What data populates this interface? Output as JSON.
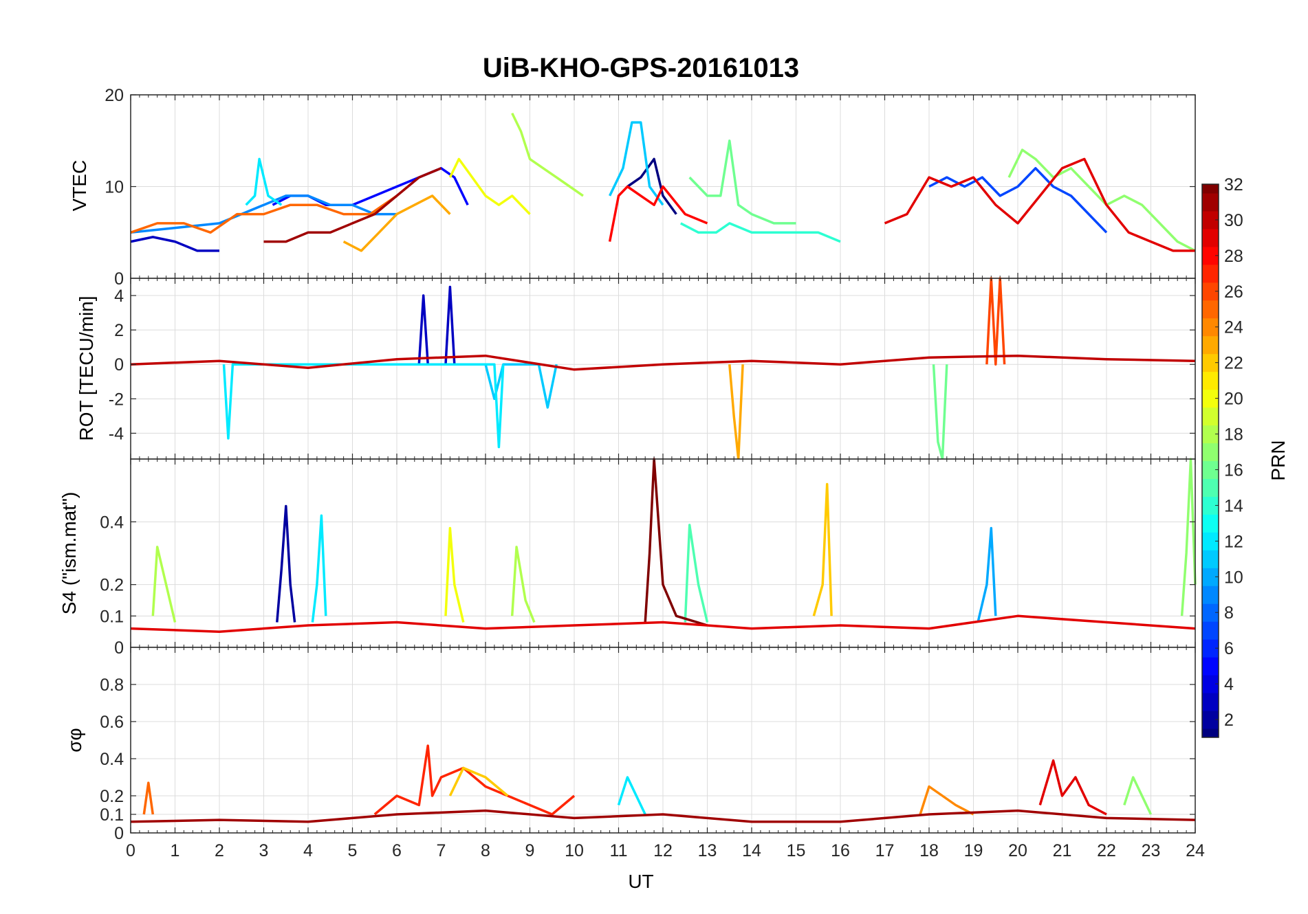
{
  "chart_data": {
    "type": "line",
    "title": "UiB-KHO-GPS-20161013",
    "xlabel": "UT",
    "xlim": [
      0,
      24
    ],
    "xticks": [
      0,
      1,
      2,
      3,
      4,
      5,
      6,
      7,
      8,
      9,
      10,
      11,
      12,
      13,
      14,
      15,
      16,
      17,
      18,
      19,
      20,
      21,
      22,
      23,
      24
    ],
    "grid": true,
    "colorbar": {
      "label": "PRN",
      "range": [
        1,
        32
      ],
      "ticks": [
        2,
        4,
        6,
        8,
        10,
        12,
        14,
        16,
        18,
        20,
        22,
        24,
        26,
        28,
        30,
        32
      ],
      "colormap": "jet"
    },
    "panels": [
      {
        "ylabel": "VTEC",
        "ylim": [
          0,
          20
        ],
        "yticks": [
          0,
          10,
          20
        ],
        "series": [
          {
            "prn": 1,
            "x": [
              11.2,
              11.5,
              11.8,
              12.0,
              12.3
            ],
            "y": [
              10,
              11,
              13,
              9,
              7
            ]
          },
          {
            "prn": 3,
            "x": [
              0.0,
              0.5,
              1.0,
              1.5,
              2.0
            ],
            "y": [
              4,
              4.5,
              4,
              3,
              3
            ]
          },
          {
            "prn": 5,
            "x": [
              3.2,
              3.6,
              4.0,
              4.4,
              5.0,
              5.5,
              6.0,
              6.5,
              7.0,
              7.3,
              7.6
            ],
            "y": [
              8,
              9,
              9,
              8,
              8,
              9,
              10,
              11,
              12,
              11,
              8
            ]
          },
          {
            "prn": 7,
            "x": [
              18.0,
              18.4,
              18.8,
              19.2,
              19.6,
              20.0,
              20.4,
              20.8,
              21.2,
              21.6,
              22.0
            ],
            "y": [
              10,
              11,
              10,
              11,
              9,
              10,
              12,
              10,
              9,
              7,
              5
            ]
          },
          {
            "prn": 9,
            "x": [
              0.0,
              1.0,
              2.0,
              3.0,
              3.5,
              4.0,
              4.5,
              5.0,
              5.5,
              6.0
            ],
            "y": [
              5,
              5.5,
              6,
              8,
              9,
              9,
              8,
              8,
              7,
              7
            ]
          },
          {
            "prn": 11,
            "x": [
              10.8,
              11.1,
              11.3,
              11.5,
              11.7,
              12.0
            ],
            "y": [
              9,
              12,
              17,
              17,
              10,
              8
            ]
          },
          {
            "prn": 12,
            "x": [
              2.6,
              2.8,
              2.9,
              3.1,
              3.4
            ],
            "y": [
              8,
              9,
              13,
              9,
              8
            ]
          },
          {
            "prn": 14,
            "x": [
              12.4,
              12.8,
              13.2,
              13.5,
              14.0,
              14.5,
              15.0,
              15.5,
              16.0
            ],
            "y": [
              6,
              5,
              5,
              6,
              5,
              5,
              5,
              5,
              4
            ]
          },
          {
            "prn": 16,
            "x": [
              12.6,
              13.0,
              13.3,
              13.5,
              13.7,
              14.0,
              14.5,
              15.0
            ],
            "y": [
              11,
              9,
              9,
              15,
              8,
              7,
              6,
              6
            ]
          },
          {
            "prn": 17,
            "x": [
              19.8,
              20.1,
              20.4,
              20.8,
              21.2,
              21.6,
              22.0,
              22.4,
              22.8,
              23.2,
              23.6,
              24.0
            ],
            "y": [
              11,
              14,
              13,
              11,
              12,
              10,
              8,
              9,
              8,
              6,
              4,
              3
            ]
          },
          {
            "prn": 18,
            "x": [
              8.6,
              8.8,
              9.0,
              9.3,
              9.6,
              9.9,
              10.2
            ],
            "y": [
              18,
              16,
              13,
              12,
              11,
              10,
              9
            ]
          },
          {
            "prn": 20,
            "x": [
              7.2,
              7.4,
              7.7,
              8.0,
              8.3,
              8.6,
              9.0
            ],
            "y": [
              11,
              13,
              11,
              9,
              8,
              9,
              7
            ]
          },
          {
            "prn": 23,
            "x": [
              4.8,
              5.2,
              5.6,
              6.0,
              6.4,
              6.8,
              7.2
            ],
            "y": [
              4,
              3,
              5,
              7,
              8,
              9,
              7
            ]
          },
          {
            "prn": 25,
            "x": [
              0.0,
              0.6,
              1.2,
              1.8,
              2.4,
              3.0,
              3.6,
              4.2,
              4.8,
              5.4,
              6.0
            ],
            "y": [
              5,
              6,
              6,
              5,
              7,
              7,
              8,
              8,
              7,
              7,
              9
            ]
          },
          {
            "prn": 28,
            "x": [
              10.8,
              11.0,
              11.2,
              11.5,
              11.8,
              12.0,
              12.5,
              13.0
            ],
            "y": [
              4,
              9,
              10,
              9,
              8,
              10,
              7,
              6
            ]
          },
          {
            "prn": 29,
            "x": [
              17.0,
              17.5,
              18.0,
              18.5,
              19.0,
              19.5,
              20.0,
              20.5,
              21.0,
              21.5,
              22.0,
              22.5,
              23.0,
              23.5,
              24.0
            ],
            "y": [
              6,
              7,
              11,
              10,
              11,
              8,
              6,
              9,
              12,
              13,
              8,
              5,
              4,
              3,
              3
            ]
          },
          {
            "prn": 31,
            "x": [
              3.0,
              3.5,
              4.0,
              4.5,
              5.0,
              5.5,
              6.0,
              6.5,
              7.0
            ],
            "y": [
              4,
              4,
              5,
              5,
              6,
              7,
              9,
              11,
              12
            ]
          }
        ]
      },
      {
        "ylabel": "ROT [TECU/min]",
        "ylim": [
          -5.5,
          5
        ],
        "yticks": [
          -4,
          -2,
          0,
          2,
          4
        ],
        "series": [
          {
            "prn": 3,
            "x": [
              6.5,
              6.6,
              6.7,
              7.1,
              7.2,
              7.3
            ],
            "y": [
              0,
              4,
              0,
              0,
              4.5,
              0
            ]
          },
          {
            "prn": 11,
            "x": [
              8.0,
              8.2,
              8.4,
              9.2,
              9.4,
              9.6
            ],
            "y": [
              0,
              -2,
              0,
              0,
              -2.5,
              0
            ]
          },
          {
            "prn": 12,
            "x": [
              2.1,
              2.2,
              2.3,
              8.2,
              8.3,
              8.4
            ],
            "y": [
              0,
              -4.3,
              0,
              0,
              -4.8,
              0
            ]
          },
          {
            "prn": 16,
            "x": [
              18.1,
              18.2,
              18.3,
              18.4
            ],
            "y": [
              0,
              -4.5,
              -5.5,
              0
            ]
          },
          {
            "prn": 23,
            "x": [
              13.5,
              13.6,
              13.7,
              13.8
            ],
            "y": [
              0,
              -3,
              -5.5,
              0
            ]
          },
          {
            "prn": 26,
            "x": [
              19.3,
              19.4,
              19.5,
              19.6,
              19.7
            ],
            "y": [
              0,
              5,
              0,
              5,
              0
            ]
          },
          {
            "prn": 30,
            "x": [
              0,
              2,
              4,
              6,
              8,
              10,
              12,
              14,
              16,
              18,
              20,
              22,
              24
            ],
            "y": [
              0,
              0.2,
              -0.2,
              0.3,
              0.5,
              -0.3,
              0,
              0.2,
              0,
              0.4,
              0.5,
              0.3,
              0.2
            ]
          }
        ]
      },
      {
        "ylabel": "S4 (\"ism.mat\")",
        "ylim": [
          0,
          0.6
        ],
        "yticks": [
          0,
          0.1,
          0.2,
          0.4
        ],
        "series": [
          {
            "prn": 2,
            "x": [
              3.3,
              3.4,
              3.5,
              3.6,
              3.7
            ],
            "y": [
              0.08,
              0.25,
              0.45,
              0.2,
              0.08
            ]
          },
          {
            "prn": 12,
            "x": [
              4.1,
              4.2,
              4.3,
              4.4
            ],
            "y": [
              0.08,
              0.2,
              0.42,
              0.1
            ]
          },
          {
            "prn": 15,
            "x": [
              12.5,
              12.6,
              12.8,
              13.0
            ],
            "y": [
              0.08,
              0.39,
              0.2,
              0.08
            ]
          },
          {
            "prn": 18,
            "x": [
              0.5,
              0.6,
              0.8,
              1.0
            ],
            "y": [
              0.1,
              0.32,
              0.2,
              0.08
            ]
          },
          {
            "prn": 18,
            "x": [
              8.6,
              8.7,
              8.9,
              9.1
            ],
            "y": [
              0.1,
              0.32,
              0.15,
              0.08
            ]
          },
          {
            "prn": 20,
            "x": [
              7.1,
              7.2,
              7.3,
              7.5
            ],
            "y": [
              0.1,
              0.38,
              0.2,
              0.08
            ]
          },
          {
            "prn": 22,
            "x": [
              15.4,
              15.6,
              15.7,
              15.8
            ],
            "y": [
              0.1,
              0.2,
              0.52,
              0.1
            ]
          },
          {
            "prn": 10,
            "x": [
              19.1,
              19.3,
              19.4,
              19.5
            ],
            "y": [
              0.08,
              0.2,
              0.38,
              0.1
            ]
          },
          {
            "prn": 32,
            "x": [
              11.6,
              11.7,
              11.8,
              12.0,
              12.3,
              13.0
            ],
            "y": [
              0.08,
              0.3,
              0.6,
              0.2,
              0.1,
              0.07
            ]
          },
          {
            "prn": 17,
            "x": [
              23.7,
              23.8,
              23.9,
              24.0
            ],
            "y": [
              0.1,
              0.3,
              0.6,
              0.2
            ]
          },
          {
            "prn": 29,
            "x": [
              0,
              2,
              4,
              6,
              8,
              10,
              12,
              14,
              16,
              18,
              20,
              22,
              24
            ],
            "y": [
              0.06,
              0.05,
              0.07,
              0.08,
              0.06,
              0.07,
              0.08,
              0.06,
              0.07,
              0.06,
              0.1,
              0.08,
              0.06
            ]
          }
        ]
      },
      {
        "ylabel": "σφ",
        "ylim": [
          0,
          1
        ],
        "yticks": [
          0,
          0.1,
          0.2,
          0.4,
          0.6,
          0.8
        ],
        "series": [
          {
            "prn": 25,
            "x": [
              0.3,
              0.4,
              0.5
            ],
            "y": [
              0.1,
              0.27,
              0.1
            ]
          },
          {
            "prn": 27,
            "x": [
              5.5,
              6.0,
              6.5,
              6.7,
              6.8,
              7.0,
              7.5,
              8.0,
              8.5,
              9.0,
              9.5,
              10.0
            ],
            "y": [
              0.1,
              0.2,
              0.15,
              0.47,
              0.2,
              0.3,
              0.35,
              0.25,
              0.2,
              0.15,
              0.1,
              0.2
            ]
          },
          {
            "prn": 22,
            "x": [
              7.2,
              7.5,
              8.0,
              8.5
            ],
            "y": [
              0.2,
              0.35,
              0.3,
              0.2
            ]
          },
          {
            "prn": 12,
            "x": [
              11.0,
              11.2,
              11.4,
              11.6
            ],
            "y": [
              0.15,
              0.3,
              0.2,
              0.1
            ]
          },
          {
            "prn": 24,
            "x": [
              17.8,
              18.0,
              18.3,
              18.6,
              19.0
            ],
            "y": [
              0.1,
              0.25,
              0.2,
              0.15,
              0.1
            ]
          },
          {
            "prn": 29,
            "x": [
              20.5,
              20.8,
              21.0,
              21.3,
              21.6,
              22.0
            ],
            "y": [
              0.15,
              0.39,
              0.2,
              0.3,
              0.15,
              0.1
            ]
          },
          {
            "prn": 17,
            "x": [
              22.4,
              22.6,
              22.8,
              23.0
            ],
            "y": [
              0.15,
              0.3,
              0.2,
              0.1
            ]
          },
          {
            "prn": 31,
            "x": [
              0,
              2,
              4,
              6,
              8,
              10,
              12,
              14,
              16,
              18,
              20,
              22,
              24
            ],
            "y": [
              0.06,
              0.07,
              0.06,
              0.1,
              0.12,
              0.08,
              0.1,
              0.06,
              0.06,
              0.1,
              0.12,
              0.08,
              0.07
            ]
          }
        ]
      }
    ]
  }
}
